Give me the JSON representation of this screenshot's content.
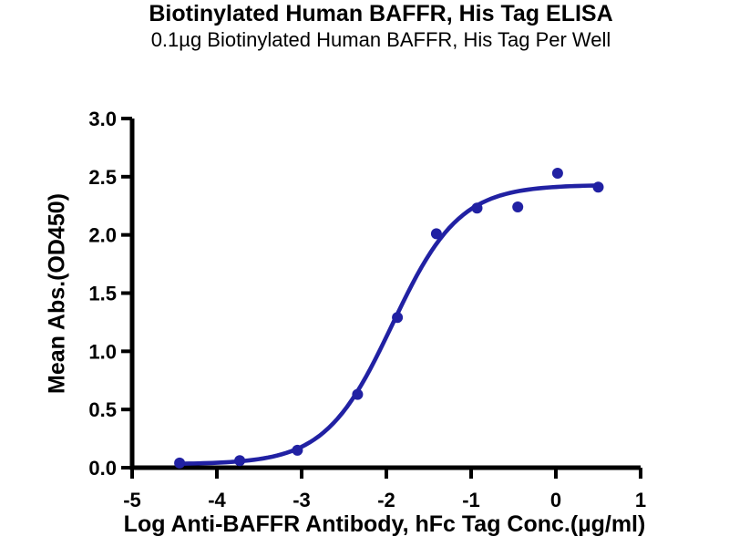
{
  "chart_data": {
    "type": "scatter",
    "title": "Biotinylated Human BAFFR, His Tag ELISA",
    "subtitle": "0.1µg Biotinylated Human BAFFR, His Tag Per Well",
    "xlabel": "Log Anti-BAFFR Antibody, hFc Tag Conc.(µg/ml)",
    "ylabel": "Mean Abs.(OD450)",
    "xlim": [
      -5,
      1
    ],
    "ylim": [
      0,
      3
    ],
    "grid": false,
    "legend": "none",
    "axis_color": "#000000",
    "series_color": "#2121a3",
    "x_ticks": [
      {
        "value": -5,
        "label": "-5"
      },
      {
        "value": -4,
        "label": "-4"
      },
      {
        "value": -3,
        "label": "-3"
      },
      {
        "value": -2,
        "label": "-2"
      },
      {
        "value": -1,
        "label": "-1"
      },
      {
        "value": 0,
        "label": "0"
      },
      {
        "value": 1,
        "label": "1"
      }
    ],
    "y_ticks": [
      {
        "value": 0.0,
        "label": "0.0"
      },
      {
        "value": 0.5,
        "label": "0.5"
      },
      {
        "value": 1.0,
        "label": "1.0"
      },
      {
        "value": 1.5,
        "label": "1.5"
      },
      {
        "value": 2.0,
        "label": "2.0"
      },
      {
        "value": 2.5,
        "label": "2.5"
      },
      {
        "value": 3.0,
        "label": "3.0"
      }
    ],
    "points": [
      {
        "x": -4.44,
        "y": 0.04
      },
      {
        "x": -3.73,
        "y": 0.06
      },
      {
        "x": -3.05,
        "y": 0.15
      },
      {
        "x": -2.34,
        "y": 0.63
      },
      {
        "x": -1.87,
        "y": 1.29
      },
      {
        "x": -1.41,
        "y": 2.01
      },
      {
        "x": -0.93,
        "y": 2.23
      },
      {
        "x": -0.45,
        "y": 2.24
      },
      {
        "x": 0.02,
        "y": 2.53
      },
      {
        "x": 0.5,
        "y": 2.41
      }
    ],
    "fit_curve": {
      "model": "4PL",
      "bottom": 0.03,
      "top": 2.43,
      "logEC50": -1.93,
      "hill": 1.1,
      "x_start": -4.44,
      "x_end": 0.5
    }
  }
}
